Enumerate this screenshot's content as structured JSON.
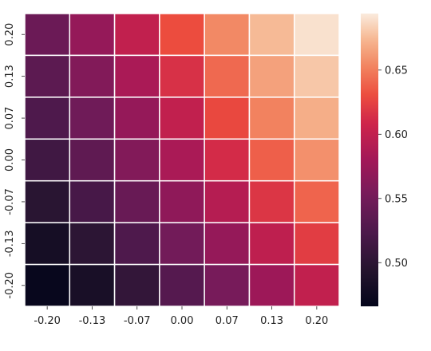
{
  "chart_data": {
    "type": "heatmap",
    "title": "",
    "xlabel": "",
    "ylabel": "",
    "x_categories": [
      "-0.20",
      "-0.13",
      "-0.07",
      "0.00",
      "0.07",
      "0.13",
      "0.20"
    ],
    "y_categories": [
      "0.20",
      "0.13",
      "0.07",
      "0.00",
      "-0.07",
      "-0.13",
      "-0.20"
    ],
    "values": [
      [
        0.545,
        0.572,
        0.6,
        0.63,
        0.655,
        0.675,
        0.69
      ],
      [
        0.535,
        0.56,
        0.585,
        0.615,
        0.642,
        0.665,
        0.68
      ],
      [
        0.525,
        0.548,
        0.572,
        0.6,
        0.628,
        0.652,
        0.67
      ],
      [
        0.515,
        0.537,
        0.56,
        0.585,
        0.612,
        0.638,
        0.658
      ],
      [
        0.498,
        0.52,
        0.543,
        0.568,
        0.592,
        0.618,
        0.64
      ],
      [
        0.482,
        0.5,
        0.525,
        0.55,
        0.572,
        0.598,
        0.622
      ],
      [
        0.47,
        0.485,
        0.505,
        0.53,
        0.553,
        0.577,
        0.6
      ]
    ],
    "colorbar": {
      "min": 0.466,
      "max": 0.694,
      "ticks": [
        0.5,
        0.55,
        0.6,
        0.65
      ],
      "tick_labels": [
        "0.50",
        "0.55",
        "0.60",
        "0.65"
      ],
      "colormap": "rocket"
    },
    "grid": true,
    "cell_border_color": "#ffffff"
  }
}
